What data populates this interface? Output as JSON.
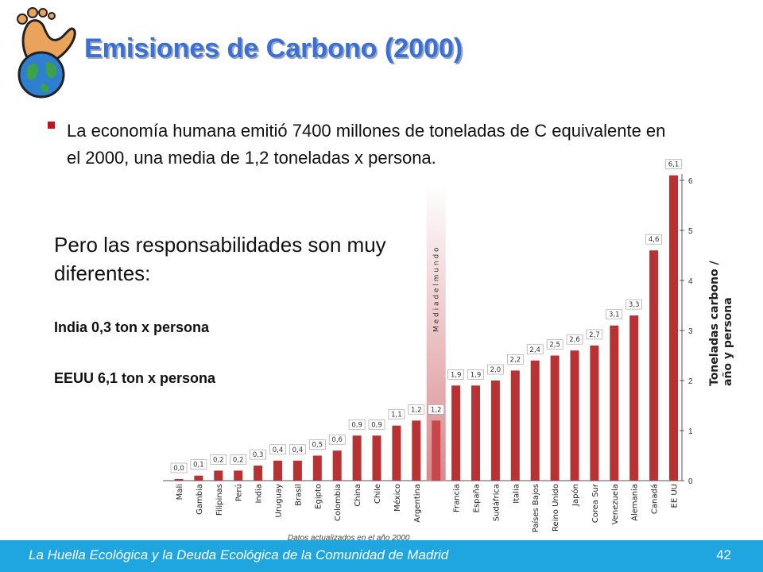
{
  "slide": {
    "title": "Emisiones de Carbono (2000)",
    "bullet": "La economía humana emitió 7400 millones de toneladas de C equivalente en el 2000, una media de 1,2 toneladas x persona.",
    "subtitle": "Pero las responsabilidades son muy diferentes:",
    "india_note": "India 0,3 ton x persona",
    "usa_note": "EEUU 6,1 ton x persona",
    "data_note": "Datos actualizados en el año 2000",
    "footer": "La Huella Ecológica y la Deuda Ecológica de la Comunidad de Madrid",
    "page_number": "42"
  },
  "colors": {
    "title": "#3a6fd8",
    "bar": "#b83234",
    "average_bar": "#d8898c",
    "footer_bar": "#1fa6e0",
    "bullet_mark": "#c0161a"
  },
  "chart_data": {
    "type": "bar",
    "categories": [
      "Mali",
      "Gambia",
      "Filipinas",
      "Perú",
      "India",
      "Uruguay",
      "Brasil",
      "Egipto",
      "Colombia",
      "China",
      "Chile",
      "México",
      "Argentina",
      "",
      "Francia",
      "España",
      "Sudáfrica",
      "Italia",
      "Países Bajos",
      "Reino Unido",
      "Japón",
      "Corea Sur",
      "Venezuela",
      "Alemania",
      "Canadá",
      "EE UU"
    ],
    "values": [
      0.0,
      0.1,
      0.2,
      0.2,
      0.3,
      0.4,
      0.4,
      0.5,
      0.6,
      0.9,
      0.9,
      1.1,
      1.2,
      1.2,
      1.9,
      1.9,
      2.0,
      2.2,
      2.4,
      2.5,
      2.6,
      2.7,
      3.1,
      3.3,
      4.6,
      6.1
    ],
    "data_labels": [
      "0,0",
      "0,1",
      "0,2",
      "0,2",
      "0,3",
      "0,4",
      "0,4",
      "0,5",
      "0,6",
      "0,9",
      "0,9",
      "1,1",
      "1,2",
      "1,2",
      "1,9",
      "1,9",
      "2,0",
      "2,2",
      "2,4",
      "2,5",
      "2,6",
      "2,7",
      "3,1",
      "3,3",
      "4,6",
      "6,1"
    ],
    "average_index": 13,
    "average_label": "M e d i a   d e l   m u n d o",
    "ylabel_line1": "Toneladas carbono /",
    "ylabel_line2": "año y persona",
    "ylim": [
      0,
      6.3
    ],
    "yticks": [
      "0",
      "1",
      "2",
      "3",
      "4",
      "5",
      "6"
    ],
    "axis_position": "right",
    "grid": false
  }
}
